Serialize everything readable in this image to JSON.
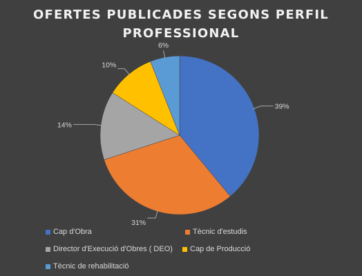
{
  "title_lines": [
    "OFERTES PUBLICADES SEGONS PERFIL",
    "PROFESSIONAL"
  ],
  "chart_data": {
    "type": "pie",
    "title": "OFERTES PUBLICADES SEGONS PERFIL PROFESSIONAL",
    "categories": [
      "Cap d'Obra",
      "Tècnic d'estudis",
      "Director d'Execució d'Obres ( DEO)",
      "Cap de Producció",
      "Tècnic de rehabilitació"
    ],
    "values": [
      39,
      31,
      14,
      10,
      6
    ],
    "labels": [
      "39%",
      "31%",
      "14%",
      "10%",
      "6%"
    ],
    "colors": [
      "#4472c4",
      "#ed7d31",
      "#a5a5a5",
      "#ffc000",
      "#5b9bd5"
    ],
    "legend_position": "bottom"
  }
}
